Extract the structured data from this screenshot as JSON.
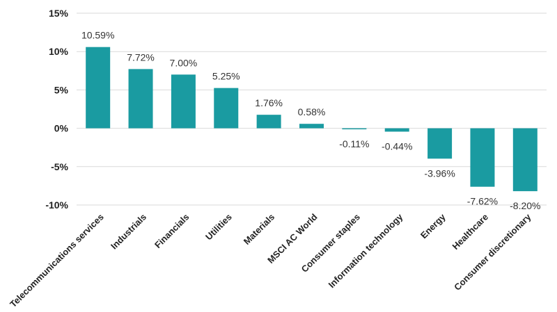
{
  "chart_data": {
    "type": "bar",
    "title": "",
    "xlabel": "",
    "ylabel": "",
    "categories": [
      "Telecommunications services",
      "Industrials",
      "Financials",
      "Utilities",
      "Materials",
      "MSCI AC World",
      "Consumer staples",
      "Information technology",
      "Energy",
      "Healthcare",
      "Consumer discretionary"
    ],
    "values": [
      10.59,
      7.72,
      7.0,
      5.25,
      1.76,
      0.58,
      -0.11,
      -0.44,
      -3.96,
      -7.62,
      -8.2
    ],
    "data_labels": [
      "10.59%",
      "7.72%",
      "7.00%",
      "5.25%",
      "1.76%",
      "0.58%",
      "-0.11%",
      "-0.44%",
      "-3.96%",
      "-7.62%",
      "-8.20%"
    ],
    "ylim": [
      -10,
      15
    ],
    "yticks": [
      15,
      10,
      5,
      0,
      -5,
      -10
    ],
    "ytick_labels": [
      "15%",
      "10%",
      "5%",
      "0%",
      "-5%",
      "-10%"
    ],
    "grid": true,
    "legend": "none",
    "bar_color": "#1a9ba1",
    "grid_color": "#d9d9d9"
  }
}
